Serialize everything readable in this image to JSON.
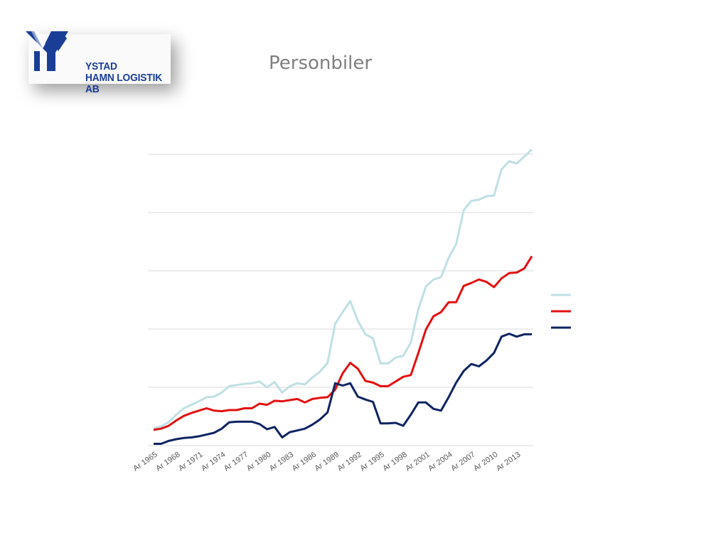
{
  "logo": {
    "line1": "YSTAD",
    "line2": "HAMN LOGISTIK AB",
    "color": "#1a3e96"
  },
  "chart_data": {
    "type": "line",
    "title": "Personbiler",
    "x": [
      "Ar 1965",
      "Ar 1966",
      "Ar 1967",
      "Ar 1968",
      "Ar 1969",
      "Ar 1970",
      "Ar 1971",
      "Ar 1972",
      "Ar 1973",
      "Ar 1974",
      "Ar 1975",
      "Ar 1976",
      "Ar 1977",
      "Ar 1978",
      "Ar 1979",
      "Ar 1980",
      "Ar 1981",
      "Ar 1982",
      "Ar 1983",
      "Ar 1984",
      "Ar 1985",
      "Ar 1986",
      "Ar 1987",
      "Ar 1988",
      "Ar 1989",
      "Ar 1990",
      "Ar 1991",
      "Ar 1992",
      "Ar 1993",
      "Ar 1994",
      "Ar 1995",
      "Ar 1996",
      "Ar 1997",
      "Ar 1998",
      "Ar 1999",
      "Ar 2000",
      "Ar 2001",
      "Ar 2002",
      "Ar 2003",
      "Ar 2004",
      "Ar 2005",
      "Ar 2006",
      "Ar 2007",
      "Ar 2008",
      "Ar 2009",
      "Ar 2010",
      "Ar 2011",
      "Ar 2012",
      "Ar 2013",
      "Ar 2014",
      "Ar 2015"
    ],
    "x_tick_labels": [
      "Ar 1965",
      "Ar 1968",
      "Ar 1971",
      "Ar 1974",
      "Ar 1977",
      "Ar 1980",
      "Ar 1983",
      "Ar 1986",
      "Ar 1989",
      "Ar 1992",
      "Ar 1995",
      "Ar 1998",
      "Ar 2001",
      "Ar 2004",
      "Ar 2007",
      "Ar 2010",
      "Ar 2013"
    ],
    "ylim": [
      0,
      5
    ],
    "yticks": [
      0,
      1,
      2,
      3,
      4,
      5
    ],
    "grid": true,
    "legend": "right",
    "series": [
      {
        "color": "#bfe0e4",
        "values": [
          0.3,
          0.33,
          0.4,
          0.53,
          0.64,
          0.7,
          0.76,
          0.83,
          0.84,
          0.91,
          1.02,
          1.04,
          1.06,
          1.07,
          1.1,
          1.0,
          1.09,
          0.91,
          1.02,
          1.07,
          1.05,
          1.17,
          1.27,
          1.42,
          2.09,
          2.29,
          2.48,
          2.14,
          1.91,
          1.84,
          1.41,
          1.41,
          1.51,
          1.54,
          1.77,
          2.34,
          2.73,
          2.85,
          2.89,
          3.22,
          3.46,
          4.04,
          4.2,
          4.22,
          4.28,
          4.29,
          4.74,
          4.88,
          4.84,
          4.96,
          5.08
        ]
      },
      {
        "color": "#e31010",
        "values": [
          0.27,
          0.29,
          0.34,
          0.43,
          0.51,
          0.56,
          0.6,
          0.64,
          0.6,
          0.59,
          0.61,
          0.61,
          0.64,
          0.64,
          0.72,
          0.7,
          0.77,
          0.76,
          0.78,
          0.8,
          0.74,
          0.8,
          0.82,
          0.83,
          0.96,
          1.24,
          1.42,
          1.32,
          1.11,
          1.08,
          1.02,
          1.02,
          1.1,
          1.18,
          1.21,
          1.59,
          1.99,
          2.22,
          2.29,
          2.46,
          2.46,
          2.74,
          2.79,
          2.85,
          2.81,
          2.72,
          2.87,
          2.96,
          2.97,
          3.04,
          3.25
        ]
      },
      {
        "color": "#0e2461",
        "values": [
          0.03,
          0.03,
          0.08,
          0.11,
          0.13,
          0.14,
          0.16,
          0.19,
          0.22,
          0.29,
          0.4,
          0.41,
          0.41,
          0.41,
          0.37,
          0.28,
          0.32,
          0.14,
          0.23,
          0.26,
          0.29,
          0.36,
          0.45,
          0.57,
          1.07,
          1.03,
          1.07,
          0.84,
          0.79,
          0.75,
          0.38,
          0.38,
          0.39,
          0.34,
          0.53,
          0.74,
          0.74,
          0.63,
          0.6,
          0.83,
          1.08,
          1.28,
          1.4,
          1.36,
          1.46,
          1.59,
          1.87,
          1.92,
          1.87,
          1.91,
          1.91
        ]
      }
    ]
  }
}
